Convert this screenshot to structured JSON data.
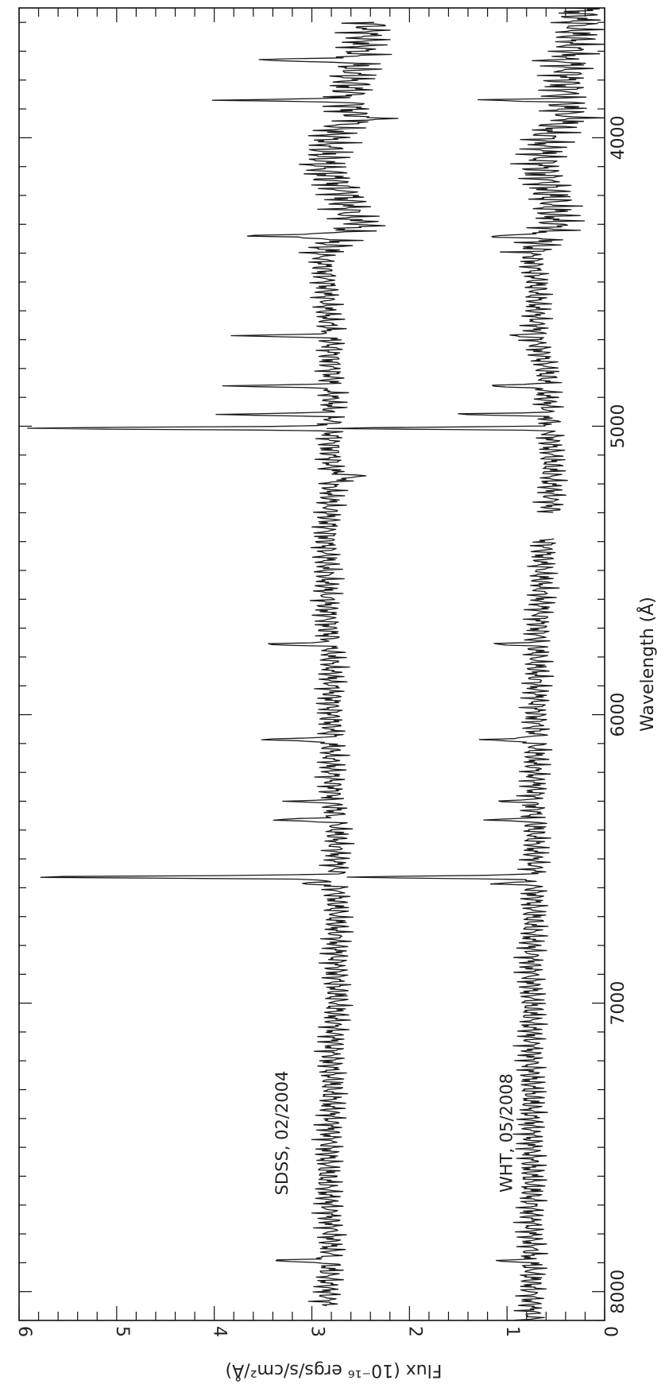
{
  "chart_data": {
    "type": "line",
    "orientation": "rotated 90 degrees (wavelength runs top-to-bottom, flux increases to the left)",
    "xlabel": "Wavelength (Å)",
    "ylabel": "Flux (10⁻¹⁶ ergs/s/cm²/Å)",
    "xlim": [
      3550,
      8100
    ],
    "ylim": [
      0,
      6
    ],
    "x_ticks": [
      {
        "value": 4000,
        "label": "4000"
      },
      {
        "value": 5000,
        "label": "5000"
      },
      {
        "value": 6000,
        "label": "6000"
      },
      {
        "value": 7000,
        "label": "7000"
      },
      {
        "value": 8000,
        "label": "8000"
      }
    ],
    "y_ticks": [
      {
        "value": 0,
        "label": "0"
      },
      {
        "value": 1,
        "label": "1"
      },
      {
        "value": 2,
        "label": "2"
      },
      {
        "value": 3,
        "label": "3"
      },
      {
        "value": 4,
        "label": "4"
      },
      {
        "value": 5,
        "label": "5"
      },
      {
        "value": 6,
        "label": "6"
      }
    ],
    "annotations": [
      {
        "text": "SDSS, 02/2004",
        "x": 7450,
        "y": 3.25
      },
      {
        "text": "WHT, 05/2008",
        "x": 7450,
        "y": 0.95
      }
    ],
    "series": [
      {
        "name": "SDSS, 02/2004",
        "segments": [
          {
            "continuum": [
              [
                3600,
                2.4
              ],
              [
                3700,
                2.5
              ],
              [
                3800,
                2.6
              ],
              [
                3900,
                2.6
              ],
              [
                4000,
                2.8
              ],
              [
                4100,
                2.9
              ],
              [
                4200,
                2.65
              ],
              [
                4300,
                2.6
              ],
              [
                4400,
                2.9
              ],
              [
                4500,
                2.85
              ],
              [
                4600,
                2.85
              ],
              [
                4700,
                2.8
              ],
              [
                4800,
                2.8
              ],
              [
                4900,
                2.8
              ],
              [
                5000,
                2.8
              ],
              [
                5200,
                2.8
              ],
              [
                5400,
                2.85
              ],
              [
                5600,
                2.85
              ],
              [
                5800,
                2.8
              ],
              [
                6000,
                2.8
              ],
              [
                6200,
                2.8
              ],
              [
                6400,
                2.75
              ],
              [
                6600,
                2.75
              ],
              [
                6800,
                2.75
              ],
              [
                7000,
                2.75
              ],
              [
                7200,
                2.8
              ],
              [
                7400,
                2.8
              ],
              [
                7600,
                2.85
              ],
              [
                7800,
                2.8
              ],
              [
                8050,
                2.85
              ]
            ],
            "lines": [
              {
                "wavelength": 3730,
                "peak": 3.75
              },
              {
                "wavelength": 3869,
                "peak": 3.85
              },
              {
                "wavelength": 4340,
                "peak": 3.8
              },
              {
                "wavelength": 4686,
                "peak": 3.7
              },
              {
                "wavelength": 4861,
                "peak": 3.8
              },
              {
                "wavelength": 4959,
                "peak": 3.85
              },
              {
                "wavelength": 5007,
                "peak": 6.0
              },
              {
                "wavelength": 5755,
                "peak": 3.45
              },
              {
                "wavelength": 6087,
                "peak": 3.55
              },
              {
                "wavelength": 6300,
                "peak": 3.15
              },
              {
                "wavelength": 6364,
                "peak": 3.45
              },
              {
                "wavelength": 6563,
                "peak": 6.0
              },
              {
                "wavelength": 6584,
                "peak": 3.15
              },
              {
                "wavelength": 7892,
                "peak": 3.45
              }
            ],
            "absorption": [
              {
                "wavelength": 3934,
                "depth": 2.35
              },
              {
                "wavelength": 4300,
                "depth": 2.45
              },
              {
                "wavelength": 5175,
                "depth": 2.55
              }
            ]
          }
        ]
      },
      {
        "name": "WHT, 05/2008",
        "segments": [
          {
            "x_range": [
              3550,
              5300
            ],
            "continuum": [
              [
                3550,
                0.25
              ],
              [
                3650,
                0.3
              ],
              [
                3800,
                0.4
              ],
              [
                3900,
                0.4
              ],
              [
                4000,
                0.6
              ],
              [
                4100,
                0.65
              ],
              [
                4200,
                0.55
              ],
              [
                4300,
                0.5
              ],
              [
                4400,
                0.75
              ],
              [
                4500,
                0.7
              ],
              [
                4600,
                0.7
              ],
              [
                4700,
                0.7
              ],
              [
                4800,
                0.6
              ],
              [
                4900,
                0.6
              ],
              [
                5000,
                0.55
              ],
              [
                5100,
                0.55
              ],
              [
                5200,
                0.55
              ],
              [
                5300,
                0.55
              ]
            ],
            "lines": [
              {
                "wavelength": 3730,
                "peak": 0.6
              },
              {
                "wavelength": 3869,
                "peak": 1.15
              },
              {
                "wavelength": 4340,
                "peak": 1.3
              },
              {
                "wavelength": 4686,
                "peak": 0.9
              },
              {
                "wavelength": 4861,
                "peak": 1.25
              },
              {
                "wavelength": 4959,
                "peak": 1.45
              },
              {
                "wavelength": 5007,
                "peak": 2.75
              }
            ],
            "absorption": [
              {
                "wavelength": 3934,
                "depth": 0.3
              }
            ]
          },
          {
            "x_range": [
              5390,
              8100
            ],
            "continuum": [
              [
                5390,
                0.6
              ],
              [
                5500,
                0.65
              ],
              [
                5600,
                0.65
              ],
              [
                5800,
                0.7
              ],
              [
                6000,
                0.7
              ],
              [
                6200,
                0.72
              ],
              [
                6400,
                0.72
              ],
              [
                6600,
                0.72
              ],
              [
                6800,
                0.75
              ],
              [
                7000,
                0.75
              ],
              [
                7200,
                0.75
              ],
              [
                7400,
                0.75
              ],
              [
                7600,
                0.75
              ],
              [
                7800,
                0.75
              ],
              [
                8100,
                0.75
              ]
            ],
            "lines": [
              {
                "wavelength": 5755,
                "peak": 1.1
              },
              {
                "wavelength": 6087,
                "peak": 1.3
              },
              {
                "wavelength": 6300,
                "peak": 1.0
              },
              {
                "wavelength": 6364,
                "peak": 1.15
              },
              {
                "wavelength": 6563,
                "peak": 2.75
              },
              {
                "wavelength": 6584,
                "peak": 1.1
              },
              {
                "wavelength": 7892,
                "peak": 1.05
              }
            ],
            "absorption": []
          }
        ]
      }
    ]
  }
}
